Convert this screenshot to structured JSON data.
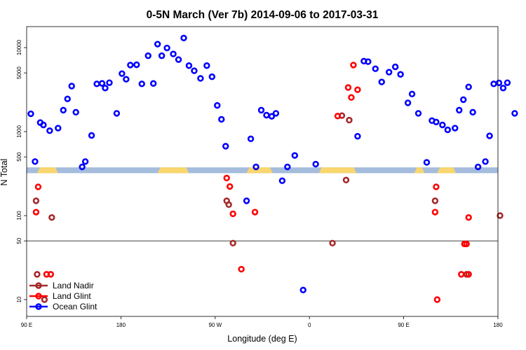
{
  "chart_data": {
    "type": "scatter",
    "title": "0-5N March (Ver 7b)   2014-09-06 to 2017-03-31",
    "xlabel": "Longitude (deg E)",
    "ylabel": "N Total",
    "xlim": [
      90,
      540
    ],
    "ylim_log10": [
      0.8,
      4.25
    ],
    "x_ticks": [
      {
        "value": 90,
        "label": "90 E"
      },
      {
        "value": 180,
        "label": "180"
      },
      {
        "value": 270,
        "label": "90 W"
      },
      {
        "value": 360,
        "label": "0"
      },
      {
        "value": 450,
        "label": "90 E"
      },
      {
        "value": 540,
        "label": "180"
      }
    ],
    "y_ticks": [
      {
        "value": 10,
        "label": "10"
      },
      {
        "value": 50,
        "label": "50"
      },
      {
        "value": 100,
        "label": "100"
      },
      {
        "value": 500,
        "label": "500"
      },
      {
        "value": 1000,
        "label": "1000"
      },
      {
        "value": 5000,
        "label": "5000"
      },
      {
        "value": 10000,
        "label": "10000"
      }
    ],
    "reference_line_y": 50,
    "land_band": {
      "y_range": [
        320,
        375
      ],
      "color": "#a5bcdc",
      "land_color": "#f9d66e",
      "land_segments": [
        [
          100,
          120
        ],
        [
          215,
          245
        ],
        [
          300,
          325
        ],
        [
          369,
          405
        ],
        [
          460,
          470
        ],
        [
          482,
          500
        ]
      ]
    },
    "legend": {
      "position": "bottom-left"
    },
    "series": [
      {
        "name": "Land Nadir",
        "color": "#a52a2a",
        "points": [
          [
            99,
            150
          ],
          [
            100,
            20
          ],
          [
            114,
            95
          ],
          [
            107,
            10
          ],
          [
            281,
            150
          ],
          [
            283,
            135
          ],
          [
            287,
            47
          ],
          [
            382,
            47
          ],
          [
            398,
            1370
          ],
          [
            391,
            1550
          ],
          [
            395,
            265
          ],
          [
            480,
            150
          ],
          [
            542,
            100
          ],
          [
            510,
            20
          ]
        ]
      },
      {
        "name": "Land Glint",
        "color": "#ff0000",
        "points": [
          [
            99,
            110
          ],
          [
            101,
            220
          ],
          [
            113,
            20
          ],
          [
            109,
            20
          ],
          [
            281,
            280
          ],
          [
            284,
            222
          ],
          [
            287,
            105
          ],
          [
            295,
            23
          ],
          [
            308,
            110
          ],
          [
            387,
            1530
          ],
          [
            397,
            3350
          ],
          [
            400,
            2550
          ],
          [
            402,
            6200
          ],
          [
            406,
            3150
          ],
          [
            480,
            110
          ],
          [
            481,
            220
          ],
          [
            505,
            20
          ],
          [
            512,
            20
          ],
          [
            512,
            95
          ],
          [
            510,
            46
          ],
          [
            482,
            10
          ],
          [
            508,
            46
          ]
        ]
      },
      {
        "name": "Ocean Glint",
        "color": "#0000ff",
        "points": [
          [
            94,
            1630
          ],
          [
            98,
            440
          ],
          [
            103,
            1280
          ],
          [
            106,
            1200
          ],
          [
            112,
            1025
          ],
          [
            120,
            1100
          ],
          [
            125,
            1800
          ],
          [
            129,
            2450
          ],
          [
            133,
            3480
          ],
          [
            137,
            1700
          ],
          [
            143,
            380
          ],
          [
            146,
            440
          ],
          [
            152,
            900
          ],
          [
            157,
            3700
          ],
          [
            162,
            3750
          ],
          [
            165,
            3300
          ],
          [
            169,
            3820
          ],
          [
            176,
            1650
          ],
          [
            181,
            4900
          ],
          [
            185,
            4200
          ],
          [
            189,
            6200
          ],
          [
            195,
            6250
          ],
          [
            200,
            3700
          ],
          [
            206,
            8000
          ],
          [
            211,
            3740
          ],
          [
            215,
            11000
          ],
          [
            219,
            8000
          ],
          [
            224,
            9900
          ],
          [
            230,
            8400
          ],
          [
            235,
            7200
          ],
          [
            240,
            13000
          ],
          [
            245,
            6100
          ],
          [
            250,
            5300
          ],
          [
            256,
            4300
          ],
          [
            262,
            6100
          ],
          [
            267,
            4500
          ],
          [
            272,
            2050
          ],
          [
            276,
            1400
          ],
          [
            280,
            670
          ],
          [
            300,
            150
          ],
          [
            304,
            820
          ],
          [
            309,
            380
          ],
          [
            314,
            1800
          ],
          [
            319,
            1570
          ],
          [
            324,
            1520
          ],
          [
            328,
            1650
          ],
          [
            334,
            260
          ],
          [
            339,
            380
          ],
          [
            346,
            520
          ],
          [
            354,
            13
          ],
          [
            366,
            410
          ],
          [
            406,
            880
          ],
          [
            412,
            6900
          ],
          [
            416,
            6800
          ],
          [
            423,
            5600
          ],
          [
            429,
            3900
          ],
          [
            436,
            5100
          ],
          [
            442,
            5900
          ],
          [
            447,
            4800
          ],
          [
            454,
            2200
          ],
          [
            458,
            2800
          ],
          [
            464,
            1650
          ],
          [
            472,
            430
          ],
          [
            477,
            1350
          ],
          [
            481,
            1300
          ],
          [
            487,
            1200
          ],
          [
            492,
            1050
          ],
          [
            499,
            1100
          ],
          [
            503,
            1800
          ],
          [
            507,
            2400
          ],
          [
            512,
            3400
          ],
          [
            516,
            1700
          ],
          [
            521,
            380
          ],
          [
            528,
            440
          ],
          [
            532,
            890
          ],
          [
            536,
            3700
          ],
          [
            541,
            3800
          ],
          [
            545,
            3300
          ],
          [
            549,
            3820
          ],
          [
            556,
            1650
          ]
        ]
      }
    ]
  }
}
